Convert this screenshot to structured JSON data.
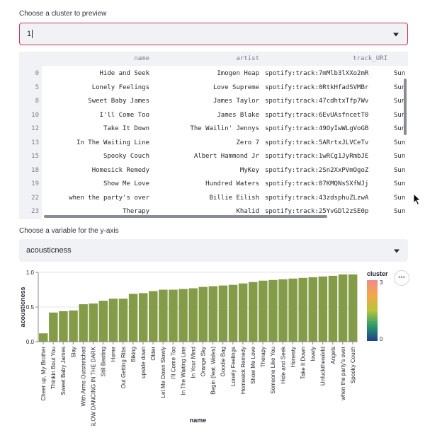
{
  "cluster_select": {
    "label": "Choose a cluster to preview",
    "value": "1"
  },
  "dataframe": {
    "columns": [
      "name",
      "artist",
      "track_URI"
    ],
    "rows": [
      {
        "index": "0",
        "name": "Hide and Seek",
        "artist": "Imogen Heap",
        "uri": "spotify:track:7mMlb3lXXo2mR",
        "extra": "Sun"
      },
      {
        "index": "5",
        "name": "Lonely Feelings",
        "artist": "Love Supreme",
        "uri": "spotify:track:0RtkHfadSVMBr",
        "extra": "Sun"
      },
      {
        "index": "8",
        "name": "Sweet Baby James",
        "artist": "James Taylor",
        "uri": "spotify:track:47cdhtxTfp7Wv",
        "extra": "Sun"
      },
      {
        "index": "10",
        "name": "I'll Come Too",
        "artist": "James Blake",
        "uri": "spotify:track:6EvUAsfncetT0",
        "extra": "Sun"
      },
      {
        "index": "12",
        "name": "Take It Down",
        "artist": "The Wailin' Jennys",
        "uri": "spotify:track:49OyIwWLgVoGB",
        "extra": "Sun"
      },
      {
        "index": "13",
        "name": "In The Waiting Line",
        "artist": "Zero 7",
        "uri": "spotify:track:5ARrtxJLVCeTv",
        "extra": "Sun"
      },
      {
        "index": "15",
        "name": "Spooky Couch",
        "artist": "Albert Hammond Jr",
        "uri": "spotify:track:1wRCg1JyRmbJE",
        "extra": "Sun"
      },
      {
        "index": "18",
        "name": "Homesick Remedy",
        "artist": "MyKey",
        "uri": "spotify:track:2Sn2XxPVmOgoZ",
        "extra": "Sun"
      },
      {
        "index": "19",
        "name": "Show Me Love",
        "artist": "Hundred Waters",
        "uri": "spotify:track:07KMQNsSXfWJj",
        "extra": "Sun"
      },
      {
        "index": "22",
        "name": "when the party's over",
        "artist": "Billie Eilish",
        "uri": "spotify:track:43zdsphuZLzwA",
        "extra": "Sun"
      },
      {
        "index": "23",
        "name": "Therapy",
        "artist": "Khalid",
        "uri": "spotify:track:25YvGDl2zSE0p",
        "extra": "Sun"
      }
    ]
  },
  "yvar_select": {
    "label": "Choose a variable for the y-axis",
    "value": "acousticness"
  },
  "chart_data": {
    "type": "bar",
    "xlabel": "name",
    "ylabel": "acousticness",
    "ylim": [
      0,
      1
    ],
    "yticks": [
      "0.0",
      "0.5",
      "1.0"
    ],
    "bar_color": "#849b48",
    "categories": [
      "Cheer up, My Brother",
      "Thinkin Bout You",
      "Sweet Baby James",
      "Slay",
      "With Arms Outstretched",
      "SLOW DANCING IN THE DARK",
      "Still Beating",
      "Home",
      "Out Getting Ribs",
      "Biking",
      "upside down",
      "Older",
      "Let Me Down Slowly",
      "I'll Come Too",
      "In The Waiting Line",
      "In Your Mind",
      "Orange Sky",
      "Begin (feat. Wales)",
      "Goodie Bag",
      "Lonely Feelings",
      "Homesick Remedy",
      "Show Me Love",
      "Therapy",
      "Someone Like You",
      "Hide and Seek",
      "Honesty",
      "Take It Down",
      "lovely",
      "Unfuckthewörld",
      "Angels",
      "when the party's over",
      "Spooky Couch"
    ],
    "values": [
      0.12,
      0.42,
      0.44,
      0.45,
      0.54,
      0.55,
      0.59,
      0.62,
      0.62,
      0.69,
      0.7,
      0.73,
      0.75,
      0.75,
      0.76,
      0.77,
      0.79,
      0.8,
      0.81,
      0.82,
      0.84,
      0.86,
      0.88,
      0.89,
      0.9,
      0.91,
      0.92,
      0.93,
      0.94,
      0.95,
      0.97,
      0.97
    ],
    "legend": {
      "title": "cluster",
      "min": "0",
      "max": "3"
    }
  }
}
